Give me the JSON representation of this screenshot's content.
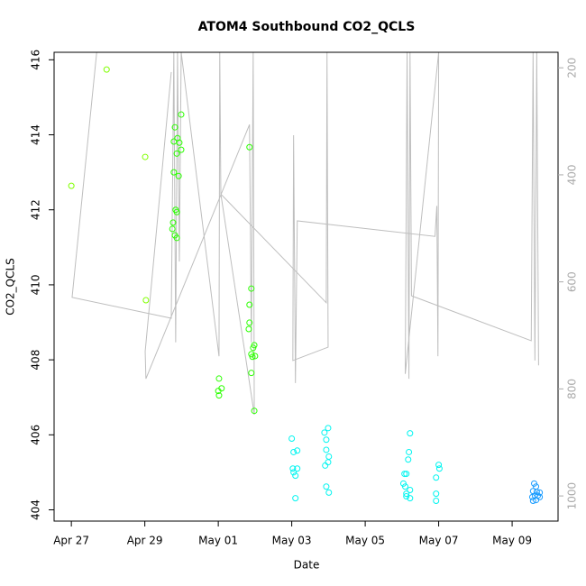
{
  "chart_data": {
    "type": "scatter",
    "title": "ATOM4 Southbound CO2_QCLS",
    "x_label": "Date",
    "y_label": "CO2_QCLS",
    "xlim": [
      -0.47,
      13.25
    ],
    "xticks": [
      {
        "value": 0,
        "label": "Apr 27"
      },
      {
        "value": 2,
        "label": "Apr 29"
      },
      {
        "value": 4,
        "label": "May 01"
      },
      {
        "value": 6,
        "label": "May 03"
      },
      {
        "value": 8,
        "label": "May 05"
      },
      {
        "value": 10,
        "label": "May 07"
      },
      {
        "value": 12,
        "label": "May 09"
      }
    ],
    "ylim": [
      403.7,
      416.2
    ],
    "yticks": [
      404,
      406,
      408,
      410,
      412,
      414,
      416
    ],
    "y2lim": [
      1047,
      171
    ],
    "y2ticks": [
      200,
      400,
      600,
      800,
      1000
    ],
    "y2_color": "#aaaaaa",
    "series": [
      {
        "type": "line",
        "axis": "y2",
        "color": "#bebebe",
        "x": [
          0.69,
          0.02,
          2.72,
          2.79,
          2.84,
          2.89,
          2.94,
          2.99,
          4.02,
          4.04,
          4.07,
          4.98,
          4.95,
          4.9,
          4.85,
          2.03,
          2.01,
          2.72,
          null,
          4.07,
          6.94,
          6.96,
          6.99,
          6.03,
          6.05,
          6.1,
          6.15,
          9.9,
          9.95,
          9.98,
          10.0,
          9.09,
          9.14,
          9.19,
          9.22,
          9.26,
          12.52,
          12.57,
          12.62,
          12.67,
          12.72
        ],
        "values": [
          171,
          629,
          668,
          171,
          713,
          171,
          562,
          171,
          739,
          171,
          436,
          848,
          171,
          713,
          306,
          781,
          730,
          208,
          null,
          436,
          639,
          171,
          722,
          747,
          326,
          789,
          486,
          515,
          458,
          739,
          171,
          772,
          171,
          781,
          171,
          626,
          710,
          171,
          747,
          171,
          756
        ]
      },
      {
        "type": "points",
        "color": "#80ff00",
        "x": [
          0,
          0.96,
          2.01,
          2.03
        ],
        "values": [
          412.64,
          415.74,
          413.41,
          409.59
        ]
      },
      {
        "type": "points",
        "color": "#2bff00",
        "x": [
          2.82,
          2.99,
          2.79,
          2.89,
          2.94,
          2.87,
          2.99,
          2.79,
          2.92,
          2.84,
          2.87,
          2.77,
          2.75,
          2.82,
          2.87,
          4.02,
          4.09,
          4.0,
          4.02,
          4.85,
          4.9,
          4.85,
          4.85,
          4.83,
          4.98,
          4.95,
          4.9,
          5.0,
          4.93,
          4.9,
          4.98
        ],
        "values": [
          414.2,
          414.54,
          413.82,
          413.91,
          413.79,
          413.5,
          413.6,
          413.0,
          412.9,
          412.0,
          411.94,
          411.66,
          411.49,
          411.32,
          411.25,
          407.5,
          407.24,
          407.17,
          407.05,
          413.67,
          409.9,
          409.47,
          408.99,
          408.82,
          408.39,
          408.32,
          408.15,
          408.1,
          408.08,
          407.65,
          406.64
        ]
      },
      {
        "type": "points",
        "color": "#00f5f0",
        "x": [
          6.0,
          6.15,
          6.05,
          6.03,
          6.15,
          6.05,
          6.1,
          6.1,
          6.99,
          6.89,
          6.94,
          6.94,
          7.01,
          6.91,
          6.99,
          6.94,
          7.01,
          9.22,
          9.19,
          9.17,
          9.12,
          9.07,
          9.04,
          9.09,
          9.22,
          9.12,
          9.22,
          9.12,
          10.0,
          10.02,
          9.93,
          9.93,
          9.93
        ],
        "values": [
          405.9,
          405.58,
          405.54,
          405.1,
          405.1,
          405.0,
          404.91,
          404.31,
          406.18,
          406.06,
          405.87,
          405.6,
          405.42,
          405.18,
          405.27,
          404.62,
          404.46,
          406.04,
          405.54,
          405.34,
          404.96,
          404.96,
          404.7,
          404.62,
          404.53,
          404.43,
          404.31,
          404.36,
          405.2,
          405.1,
          404.86,
          404.43,
          404.24
        ]
      },
      {
        "type": "points",
        "color": "#1a9cff",
        "x": [
          12.6,
          12.65,
          12.57,
          12.67,
          12.75,
          12.62,
          12.7,
          12.55,
          12.75,
          12.65,
          12.57
        ],
        "values": [
          404.7,
          404.62,
          404.5,
          404.48,
          404.46,
          404.38,
          404.38,
          404.34,
          404.34,
          404.26,
          404.24
        ]
      }
    ]
  }
}
